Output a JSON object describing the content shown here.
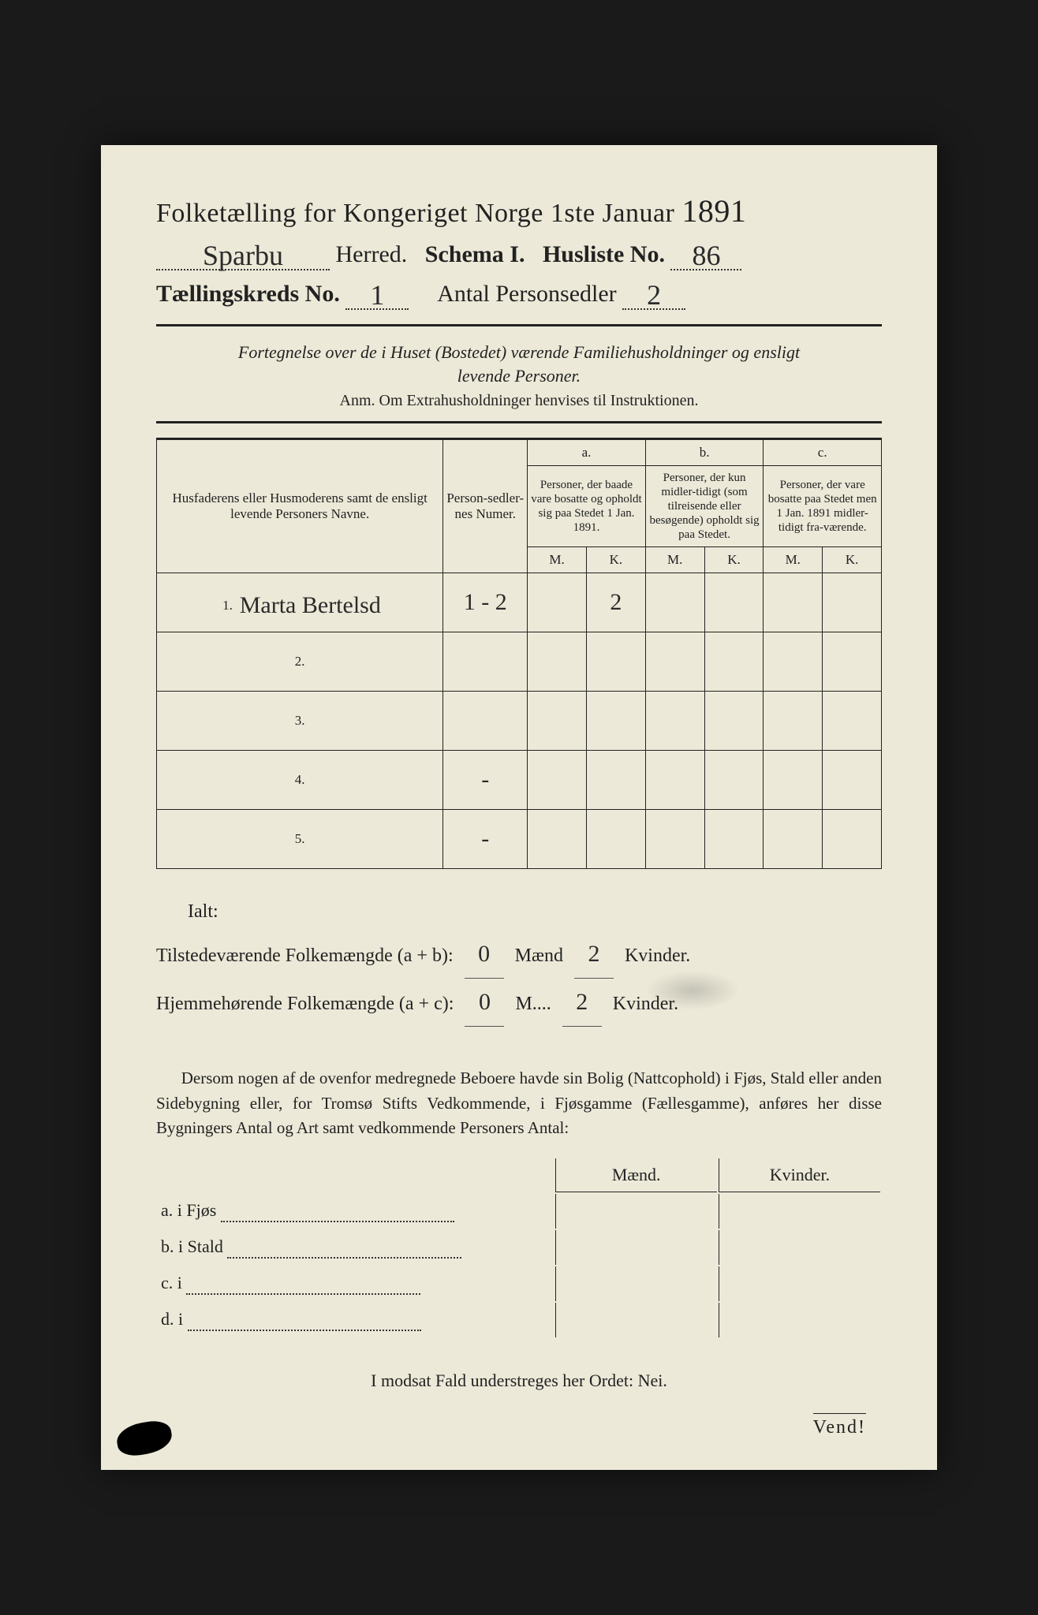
{
  "header": {
    "title_prefix": "Folketælling for Kongeriget Norge 1ste Januar",
    "year": "1891",
    "herred_hw": "Sparbu",
    "herred_label": "Herred.",
    "schema_label": "Schema I.",
    "husliste_label": "Husliste No.",
    "husliste_hw": "86",
    "kreds_label": "Tællingskreds No.",
    "kreds_hw": "1",
    "antal_label": "Antal Personsedler",
    "antal_hw": "2"
  },
  "note": {
    "italic_line1": "Fortegnelse over de i Huset (Bostedet) værende Familiehusholdninger og ensligt",
    "italic_line2": "levende Personer.",
    "anm": "Anm.  Om Extrahusholdninger henvises til Instruktionen."
  },
  "table": {
    "col_name": "Husfaderens eller Husmoderens samt de ensligt levende Personers Navne.",
    "col_num": "Person-sedler-nes Numer.",
    "col_a_top": "a.",
    "col_a": "Personer, der baade vare bosatte og opholdt sig paa Stedet 1 Jan. 1891.",
    "col_b_top": "b.",
    "col_b": "Personer, der kun midler-tidigt (som tilreisende eller besøgende) opholdt sig paa Stedet.",
    "col_c_top": "c.",
    "col_c": "Personer, der vare bosatte paa Stedet men 1 Jan. 1891 midler-tidigt fra-værende.",
    "M": "M.",
    "K": "K.",
    "rows": [
      {
        "n": "1.",
        "name": "Marta Bertelsd",
        "num": "1 - 2",
        "aM": "",
        "aK": "2",
        "bM": "",
        "bK": "",
        "cM": "",
        "cK": ""
      },
      {
        "n": "2.",
        "name": "",
        "num": "",
        "aM": "",
        "aK": "",
        "bM": "",
        "bK": "",
        "cM": "",
        "cK": ""
      },
      {
        "n": "3.",
        "name": "",
        "num": "",
        "aM": "",
        "aK": "",
        "bM": "",
        "bK": "",
        "cM": "",
        "cK": ""
      },
      {
        "n": "4.",
        "name": "",
        "num": "-",
        "aM": "",
        "aK": "",
        "bM": "",
        "bK": "",
        "cM": "",
        "cK": ""
      },
      {
        "n": "5.",
        "name": "",
        "num": "-",
        "aM": "",
        "aK": "",
        "bM": "",
        "bK": "",
        "cM": "",
        "cK": ""
      }
    ]
  },
  "ialt": {
    "heading": "Ialt:",
    "line1_label": "Tilstedeværende Folkemængde (a + b):",
    "line1_m": "0",
    "line1_m_label": "Mænd",
    "line1_k": "2",
    "line1_k_label": "Kvinder.",
    "line2_label": "Hjemmehørende Folkemængde (a + c):",
    "line2_m": "0",
    "line2_m_label": "M....",
    "line2_k": "2",
    "line2_k_label": "Kvinder."
  },
  "para": {
    "text": "Dersom nogen af de ovenfor medregnede Beboere havde sin Bolig (Nattcophold) i Fjøs, Stald eller anden Sidebygning eller, for Tromsø Stifts Vedkommende, i Fjøsgamme (Fællesgamme), anføres her disse Bygningers Antal og Art samt vedkommende Personers Antal:"
  },
  "subtable": {
    "maend": "Mænd.",
    "kvinder": "Kvinder.",
    "rows": [
      {
        "label": "a.  i     Fjøs"
      },
      {
        "label": "b.  i     Stald"
      },
      {
        "label": "c.  i"
      },
      {
        "label": "d.  i"
      }
    ]
  },
  "footer": {
    "nei": "I modsat Fald understreges her Ordet: Nei.",
    "vend": "Vend!"
  },
  "colors": {
    "paper": "#ece9d8",
    "ink": "#222222",
    "background": "#1a1a1a"
  }
}
